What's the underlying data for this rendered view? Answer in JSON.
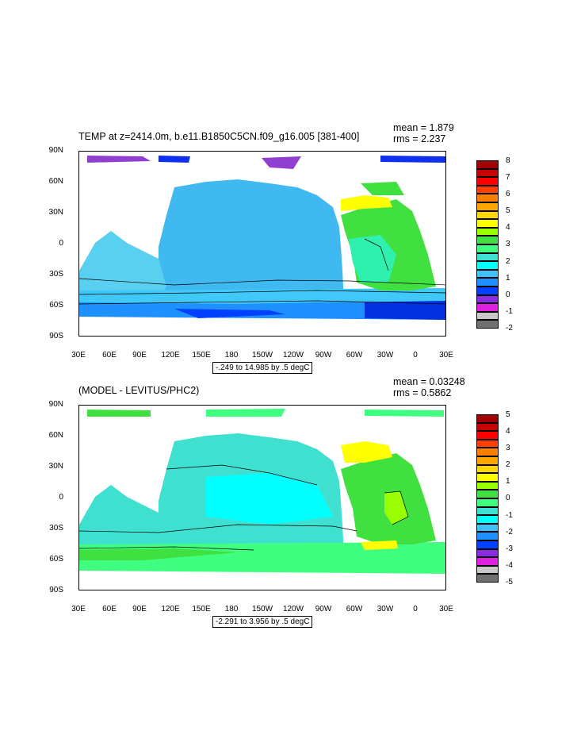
{
  "panels": [
    {
      "title": "TEMP at z=2414.0m, b.e11.B1850C5CN.f09_g16.005 [381-400]",
      "mean": "mean = 1.879",
      "rms": "rms = 2.237",
      "range_label": "-.249 to 14.985 by .5 degC",
      "colorbar_labels": [
        "8",
        "7",
        "6",
        "5",
        "4",
        "3",
        "2",
        "1",
        "0",
        "-1",
        "-2"
      ]
    },
    {
      "title": "(MODEL - LEVITUS/PHC2)",
      "mean": "mean = 0.03248",
      "rms": "rms = 0.5862",
      "range_label": "-2.291 to 3.956 by .5 degC",
      "colorbar_labels": [
        "5",
        "4",
        "3",
        "2",
        "1",
        "0",
        "-1",
        "-2",
        "-3",
        "-4",
        "-5"
      ]
    }
  ],
  "axes": {
    "y_ticks": [
      "90N",
      "60N",
      "30N",
      "0",
      "30S",
      "60S",
      "90S"
    ],
    "x_ticks": [
      "30E",
      "60E",
      "90E",
      "120E",
      "150E",
      "180",
      "150W",
      "120W",
      "90W",
      "60W",
      "30W",
      "0",
      "30E"
    ]
  },
  "colors": {
    "palette": [
      "#707070",
      "#c8c8c8",
      "#e020e0",
      "#8a2be2",
      "#0040ff",
      "#1e90ff",
      "#40c0ff",
      "#00ffff",
      "#40e0d0",
      "#40ff80",
      "#40e040",
      "#9aff00",
      "#ffff00",
      "#ffd700",
      "#ffa500",
      "#ff7f00",
      "#ff4000",
      "#ff0000",
      "#c80000",
      "#a00000"
    ]
  }
}
